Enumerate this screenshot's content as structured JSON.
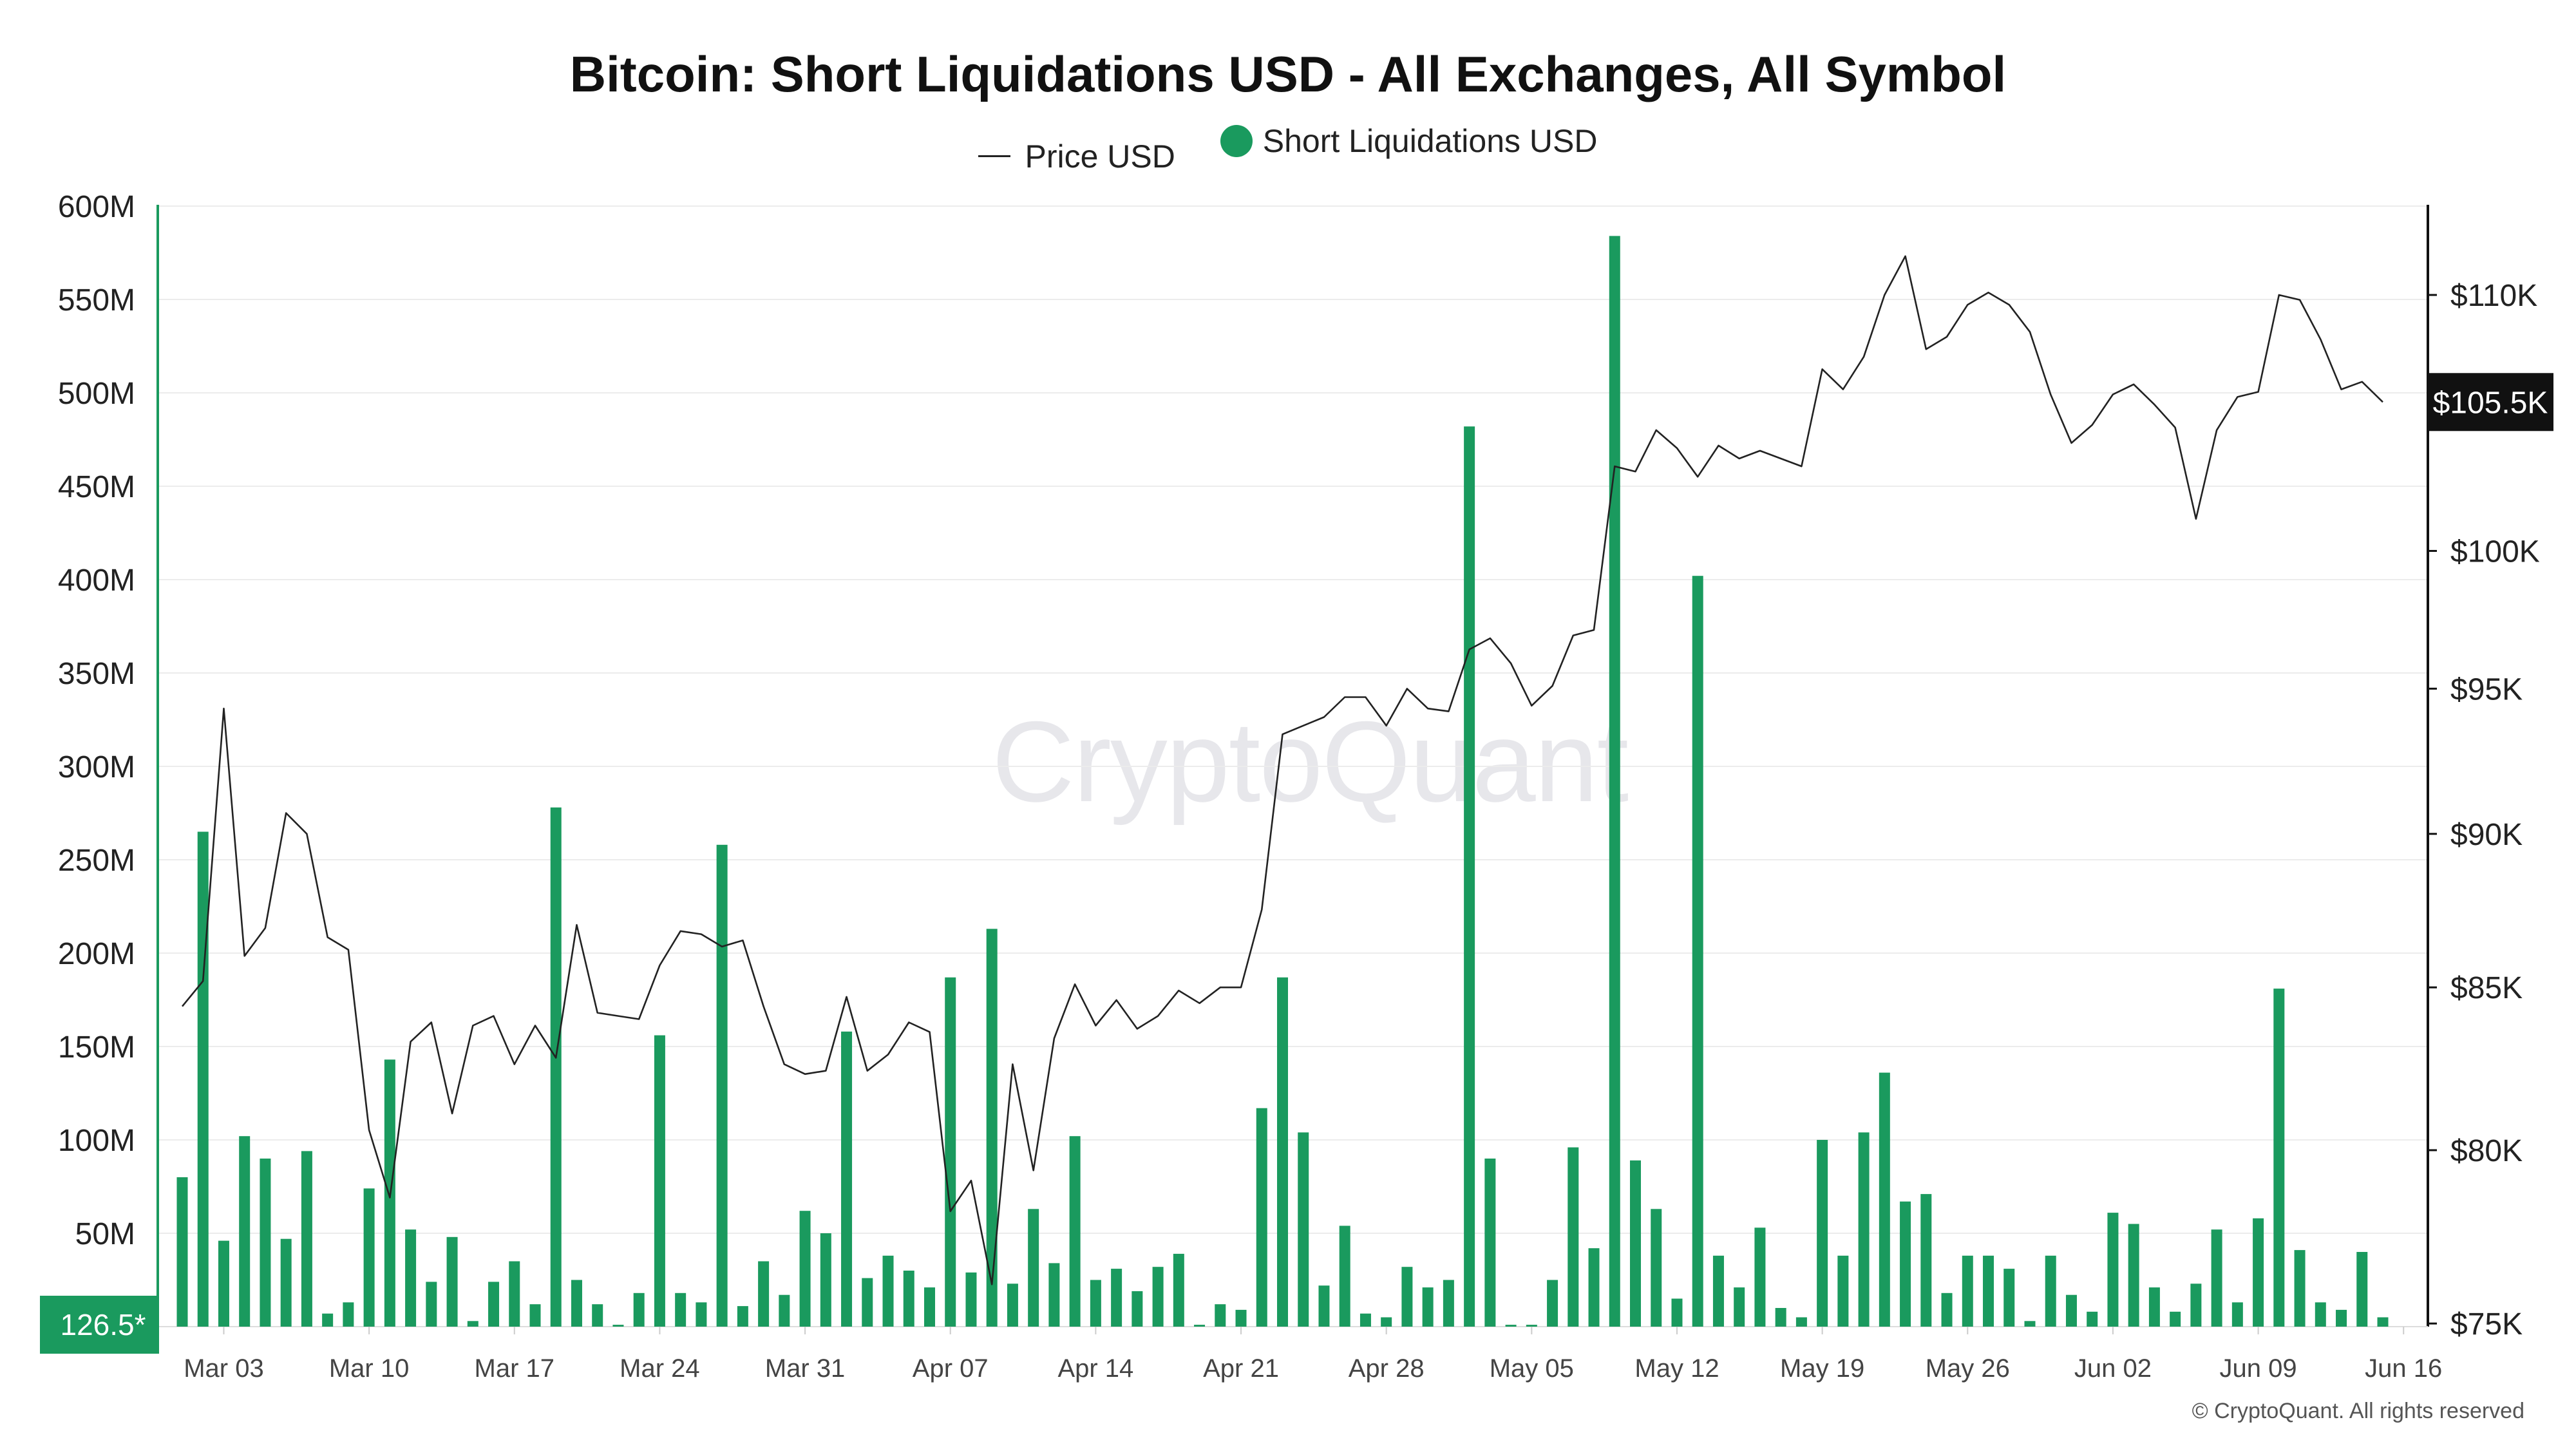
{
  "chart_data": {
    "type": "bar",
    "title": "Bitcoin: Short Liquidations USD - All Exchanges, All Symbol",
    "legend": [
      {
        "name": "Price USD",
        "kind": "line",
        "color": "#222222"
      },
      {
        "name": "Short Liquidations USD",
        "kind": "bar",
        "color": "#1a9a5e"
      }
    ],
    "left_axis": {
      "ticks": [
        0,
        50,
        100,
        150,
        200,
        250,
        300,
        350,
        400,
        450,
        500,
        550,
        600
      ],
      "tick_labels": [
        "",
        "50M",
        "100M",
        "150M",
        "200M",
        "250M",
        "300M",
        "350M",
        "400M",
        "450M",
        "500M",
        "550M",
        "600M"
      ],
      "ylim": [
        0,
        600
      ],
      "unit": "M"
    },
    "right_axis": {
      "ticks": [
        75,
        80,
        85,
        90,
        95,
        100,
        110
      ],
      "tick_labels": [
        "$75K",
        "$80K",
        "$85K",
        "$90K",
        "$95K",
        "$100K",
        "$110K"
      ],
      "unit": "K",
      "scale": "log"
    },
    "x_ticks": [
      "Mar 03",
      "Mar 10",
      "Mar 17",
      "Mar 24",
      "Mar 31",
      "Apr 07",
      "Apr 14",
      "Apr 21",
      "Apr 28",
      "May 05",
      "May 12",
      "May 19",
      "May 26",
      "Jun 02",
      "Jun 09",
      "Jun 16"
    ],
    "start_date": "Mar 01",
    "current_value_label": "126.5*",
    "current_price_label": "$105.5K",
    "series": [
      {
        "name": "Short Liquidations USD",
        "axis": "left",
        "values": [
          80,
          265,
          46,
          102,
          90,
          47,
          94,
          7,
          13,
          74,
          143,
          52,
          24,
          48,
          3,
          24,
          35,
          12,
          278,
          25,
          12,
          1,
          18,
          156,
          18,
          13,
          258,
          11,
          35,
          17,
          62,
          50,
          158,
          26,
          38,
          30,
          21,
          187,
          29,
          213,
          23,
          63,
          34,
          102,
          25,
          31,
          19,
          32,
          39,
          1,
          12,
          9,
          117,
          187,
          104,
          22,
          54,
          7,
          5,
          32,
          21,
          25,
          482,
          90,
          1,
          1,
          25,
          96,
          42,
          584,
          89,
          63,
          15,
          402,
          38,
          21,
          53,
          10,
          5,
          100,
          38,
          104,
          136,
          67,
          71,
          18,
          38,
          38,
          31,
          3,
          38,
          17,
          8,
          61,
          55,
          21,
          8,
          23,
          52,
          13,
          58,
          181,
          41,
          13,
          9,
          40,
          5
        ]
      },
      {
        "name": "Price USD",
        "axis": "right",
        "values": [
          84.4,
          85.2,
          94.3,
          86.0,
          86.9,
          90.7,
          90.0,
          86.6,
          86.2,
          80.6,
          78.6,
          83.3,
          83.9,
          81.1,
          83.8,
          84.1,
          82.6,
          83.8,
          82.8,
          87.0,
          84.2,
          84.1,
          84.0,
          85.7,
          86.8,
          86.7,
          86.3,
          86.5,
          84.4,
          82.6,
          82.3,
          82.4,
          84.7,
          82.4,
          82.9,
          83.9,
          83.6,
          78.2,
          79.1,
          76.1,
          82.6,
          79.4,
          83.4,
          85.1,
          83.8,
          84.6,
          83.7,
          84.1,
          84.9,
          84.5,
          85.0,
          85.0,
          87.5,
          93.4,
          93.7,
          94.0,
          94.7,
          94.7,
          93.7,
          95.0,
          94.3,
          94.2,
          96.4,
          96.8,
          95.9,
          94.4,
          95.1,
          96.9,
          97.1,
          103.2,
          103.0,
          104.6,
          103.9,
          102.8,
          104.0,
          103.5,
          103.8,
          103.5,
          103.2,
          107.0,
          106.2,
          107.5,
          110.0,
          111.6,
          107.8,
          108.3,
          109.6,
          110.1,
          109.6,
          108.5,
          106.0,
          104.1,
          104.8,
          106.0,
          106.4,
          105.6,
          104.7,
          101.2,
          104.6,
          105.9,
          106.1,
          110.0,
          109.8,
          108.2,
          106.2,
          106.5,
          105.7
        ]
      }
    ]
  }
}
